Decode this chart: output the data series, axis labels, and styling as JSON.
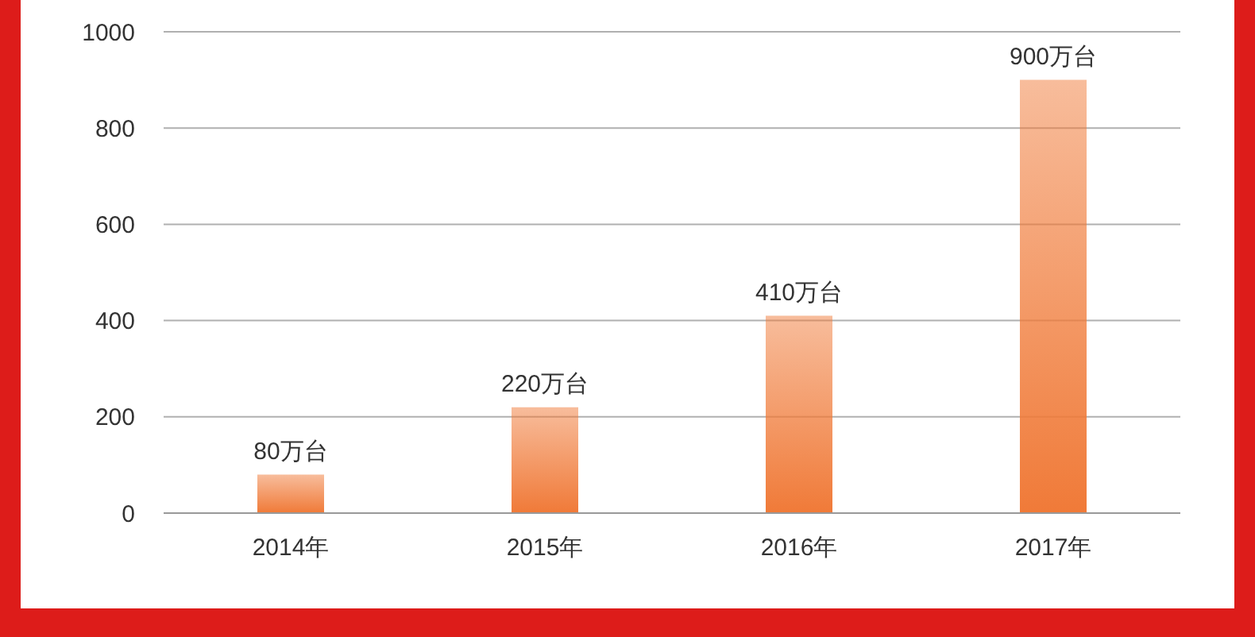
{
  "chart_data": {
    "type": "bar",
    "categories": [
      "2014年",
      "2015年",
      "2016年",
      "2017年"
    ],
    "values": [
      80,
      220,
      410,
      900
    ],
    "value_labels": [
      "80万台",
      "220万台",
      "410万台",
      "900万台"
    ],
    "color": "#f07a38",
    "ylim": [
      0,
      1000
    ],
    "yticks": [
      0,
      200,
      400,
      600,
      800,
      1000
    ],
    "grid": "y",
    "legend": false
  }
}
